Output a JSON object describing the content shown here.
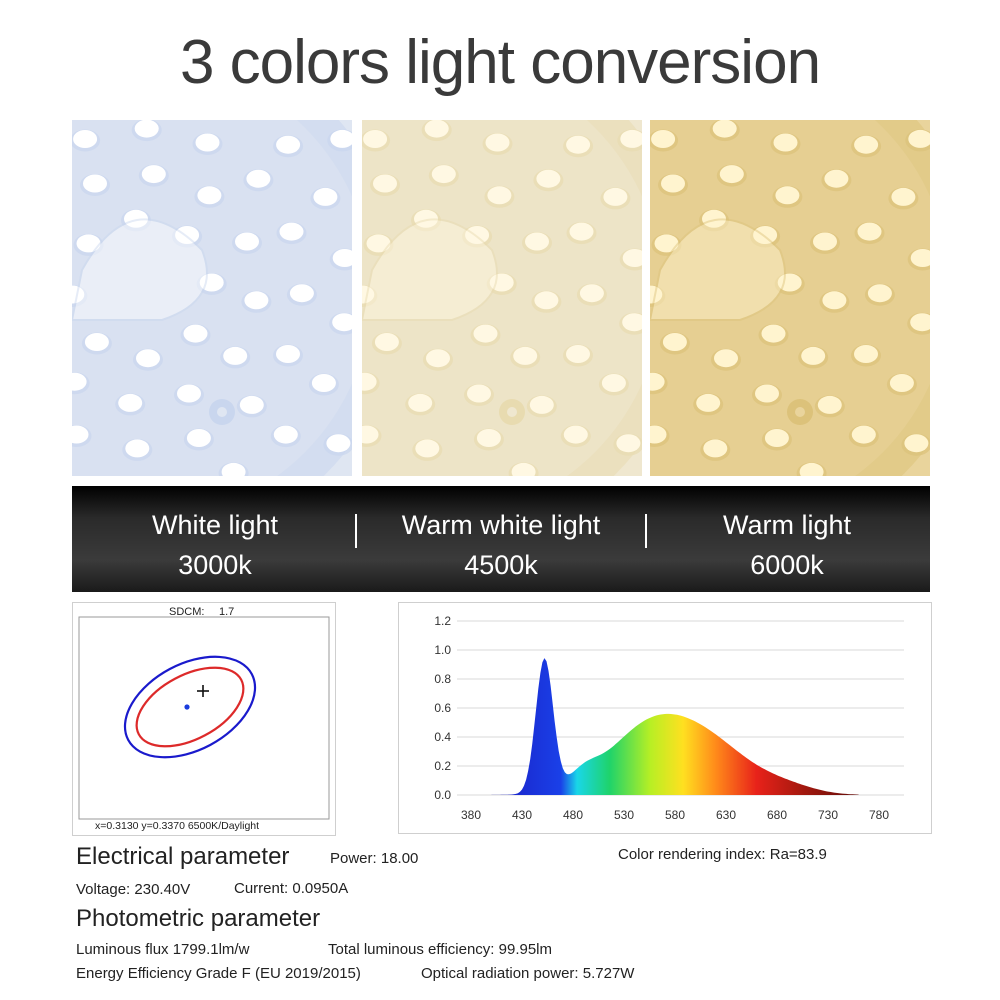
{
  "title": "3 colors light conversion",
  "modes": [
    {
      "name": "White light",
      "kelvin": "3000k"
    },
    {
      "name": "Warm white light",
      "kelvin": "4500k"
    },
    {
      "name": "Warm light",
      "kelvin": "6000k"
    }
  ],
  "photo_tints": [
    {
      "bg": "#dfe6f2",
      "led": "#ffffff",
      "glow": "#c9d6ee"
    },
    {
      "bg": "#efe7cf",
      "led": "#fff8e3",
      "glow": "#e8dbb0"
    },
    {
      "bg": "#e9d49c",
      "led": "#fff4cf",
      "glow": "#dcc27a"
    }
  ],
  "cie": {
    "sdcm_label": "SDCM:",
    "sdcm_value": "1.7",
    "readout": "x=0.3130 y=0.3370 6500K/Daylight"
  },
  "spectrum": {
    "yticks": [
      "0.0",
      "0.2",
      "0.4",
      "0.6",
      "0.8",
      "1.0",
      "1.2"
    ],
    "xticks": [
      "380",
      "430",
      "480",
      "530",
      "580",
      "630",
      "680",
      "730",
      "780"
    ]
  },
  "params": {
    "electrical_heading": "Electrical parameter",
    "power": "Power: 18.00",
    "color_rendering": "Color rendering index: Ra=83.9",
    "voltage": "Voltage: 230.40V",
    "current": "Current: 0.0950A",
    "photometric_heading": "Photometric parameter",
    "luminous_flux": "Luminous flux 1799.1lm/w",
    "total_efficiency": "Total luminous efficiency: 99.95lm",
    "energy_grade": "Energy Efficiency Grade F (EU 2019/2015)",
    "optical_power": "Optical radiation power: 5.727W"
  }
}
